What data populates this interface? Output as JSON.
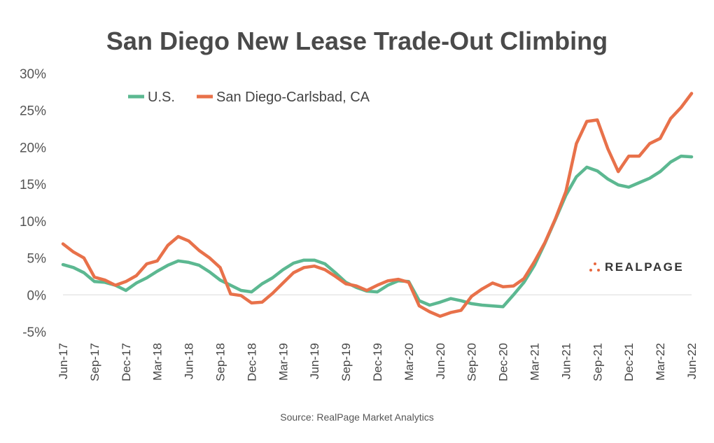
{
  "chart_data": {
    "type": "line",
    "title": "San Diego New Lease Trade-Out Climbing",
    "source": "Source: RealPage Market Analytics",
    "logo_text": "REALPAGE",
    "ylim": [
      -5,
      30
    ],
    "yticks": [
      "30%",
      "25%",
      "20%",
      "15%",
      "10%",
      "5%",
      "0%",
      "-5%"
    ],
    "ytick_values": [
      30,
      25,
      20,
      15,
      10,
      5,
      0,
      -5
    ],
    "xtick_labels": [
      "Jun-17",
      "Sep-17",
      "Dec-17",
      "Mar-18",
      "Jun-18",
      "Sep-18",
      "Dec-18",
      "Mar-19",
      "Jun-19",
      "Sep-19",
      "Dec-19",
      "Mar-20",
      "Jun-20",
      "Sep-20",
      "Dec-20",
      "Mar-21",
      "Jun-21",
      "Sep-21",
      "Dec-21",
      "Mar-22",
      "Jun-22"
    ],
    "x": [
      "Jun-17",
      "Jul-17",
      "Aug-17",
      "Sep-17",
      "Oct-17",
      "Nov-17",
      "Dec-17",
      "Jan-18",
      "Feb-18",
      "Mar-18",
      "Apr-18",
      "May-18",
      "Jun-18",
      "Jul-18",
      "Aug-18",
      "Sep-18",
      "Oct-18",
      "Nov-18",
      "Dec-18",
      "Jan-19",
      "Feb-19",
      "Mar-19",
      "Apr-19",
      "May-19",
      "Jun-19",
      "Jul-19",
      "Aug-19",
      "Sep-19",
      "Oct-19",
      "Nov-19",
      "Dec-19",
      "Jan-20",
      "Feb-20",
      "Mar-20",
      "Apr-20",
      "May-20",
      "Jun-20",
      "Jul-20",
      "Aug-20",
      "Sep-20",
      "Oct-20",
      "Nov-20",
      "Dec-20",
      "Jan-21",
      "Feb-21",
      "Mar-21",
      "Apr-21",
      "May-21",
      "Jun-21",
      "Jul-21",
      "Aug-21",
      "Sep-21",
      "Oct-21",
      "Nov-21",
      "Dec-21",
      "Jan-22",
      "Feb-22",
      "Mar-22",
      "Apr-22",
      "May-22",
      "Jun-22"
    ],
    "legend": "top-left",
    "grid": false,
    "series": [
      {
        "name": "U.S.",
        "color": "#5cb891",
        "values": [
          4.1,
          3.7,
          3.0,
          1.8,
          1.7,
          1.3,
          0.6,
          1.6,
          2.3,
          3.2,
          4.0,
          4.6,
          4.4,
          4.0,
          3.1,
          2.0,
          1.3,
          0.6,
          0.4,
          1.5,
          2.3,
          3.4,
          4.3,
          4.7,
          4.7,
          4.2,
          3.0,
          1.7,
          1.0,
          0.5,
          0.4,
          1.3,
          1.9,
          1.8,
          -0.8,
          -1.4,
          -1.0,
          -0.5,
          -0.8,
          -1.2,
          -1.4,
          -1.5,
          -1.6,
          0.0,
          1.7,
          4.0,
          7.0,
          10.2,
          13.5,
          16.0,
          17.3,
          16.8,
          15.7,
          14.9,
          14.6,
          15.2,
          15.8,
          16.7,
          18.0,
          18.8,
          18.7
        ]
      },
      {
        "name": "San Diego-Carlsbad, CA",
        "color": "#e8714a",
        "values": [
          6.9,
          5.8,
          5.0,
          2.4,
          2.0,
          1.3,
          1.8,
          2.6,
          4.2,
          4.6,
          6.7,
          7.9,
          7.3,
          6.0,
          5.0,
          3.7,
          0.1,
          -0.1,
          -1.1,
          -1.0,
          0.2,
          1.6,
          3.0,
          3.7,
          3.9,
          3.4,
          2.5,
          1.5,
          1.2,
          0.6,
          1.3,
          1.9,
          2.1,
          1.7,
          -1.5,
          -2.3,
          -2.9,
          -2.4,
          -2.1,
          -0.2,
          0.8,
          1.6,
          1.1,
          1.2,
          2.2,
          4.5,
          7.1,
          10.3,
          14.0,
          20.5,
          23.5,
          23.7,
          19.8,
          16.7,
          18.8,
          18.8,
          20.5,
          21.2,
          23.9,
          25.4,
          27.3
        ]
      }
    ]
  }
}
